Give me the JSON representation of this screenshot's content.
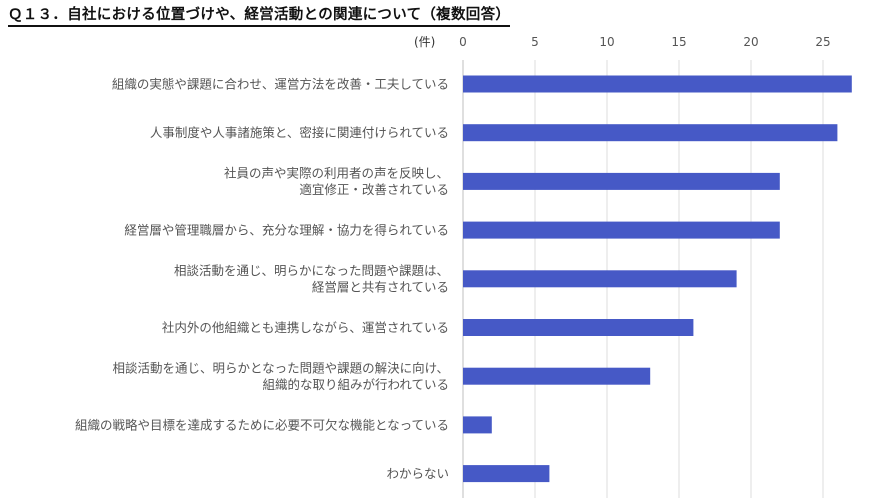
{
  "page": {
    "title": "Ｑ１３．自社における位置づけや、経営活動との関連について（複数回答）"
  },
  "chart_data": {
    "type": "bar",
    "orientation": "horizontal",
    "unit_label": "(件)",
    "xlim": [
      0,
      27
    ],
    "ticks": [
      0,
      5,
      10,
      15,
      20,
      25
    ],
    "grid": true,
    "bar_color": "#4659c6",
    "categories": [
      [
        "組織の実態や課題に合わせ、運営方法を改善・工夫している"
      ],
      [
        "人事制度や人事諸施策と、密接に関連付けられている"
      ],
      [
        "社員の声や実際の利用者の声を反映し、",
        "適宜修正・改善されている"
      ],
      [
        "経営層や管理職層から、充分な理解・協力を得られている"
      ],
      [
        "相談活動を通じ、明らかになった問題や課題は、",
        "経営層と共有されている"
      ],
      [
        "社内外の他組織とも連携しながら、運営されている"
      ],
      [
        "相談活動を通じ、明らかとなった問題や課題の解決に向け、",
        "組織的な取り組みが行われている"
      ],
      [
        "組織の戦略や目標を達成するために必要不可欠な機能となっている"
      ],
      [
        "わからない"
      ]
    ],
    "values": [
      27,
      26,
      22,
      22,
      19,
      16,
      13,
      2,
      6
    ]
  }
}
